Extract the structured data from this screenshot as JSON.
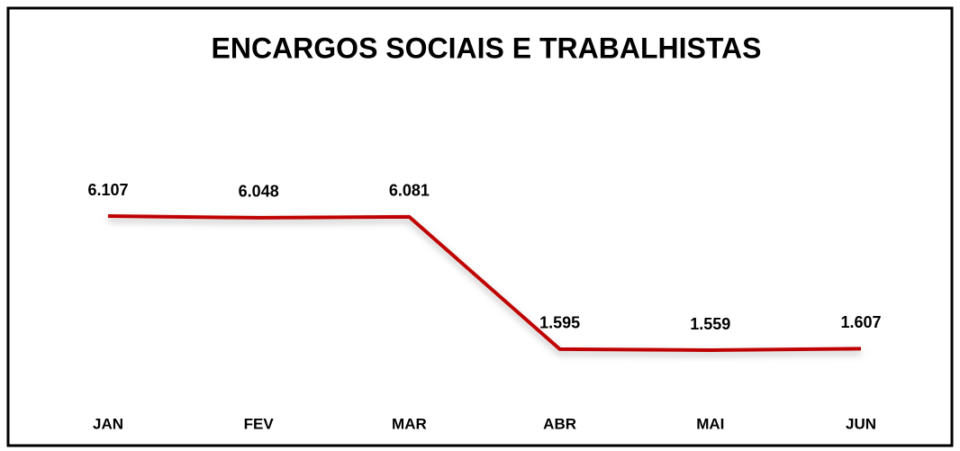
{
  "chart_data": {
    "type": "line",
    "title": "ENCARGOS SOCIAIS E TRABALHISTAS",
    "categories": [
      "JAN",
      "FEV",
      "MAR",
      "ABR",
      "MAI",
      "JUN"
    ],
    "series": [
      {
        "color": "#c00000",
        "values": [
          6107,
          6048,
          6081,
          1595,
          1559,
          1607
        ],
        "value_labels": [
          "6.107",
          "6.048",
          "6.081",
          "1.595",
          "1.559",
          "1.607"
        ]
      }
    ]
  }
}
